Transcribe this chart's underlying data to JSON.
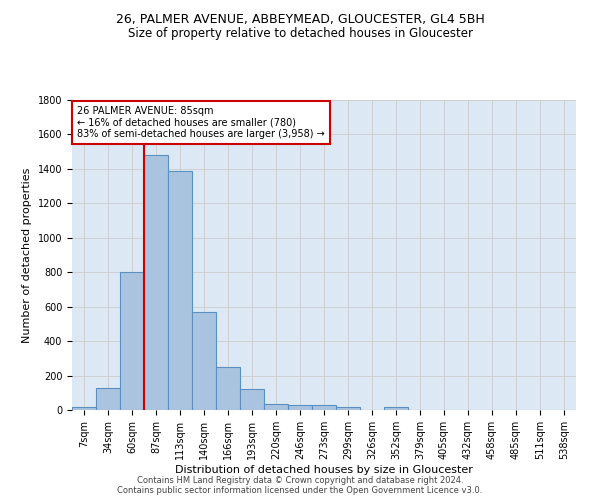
{
  "title": "26, PALMER AVENUE, ABBEYMEAD, GLOUCESTER, GL4 5BH",
  "subtitle": "Size of property relative to detached houses in Gloucester",
  "xlabel": "Distribution of detached houses by size in Gloucester",
  "ylabel": "Number of detached properties",
  "categories": [
    "7sqm",
    "34sqm",
    "60sqm",
    "87sqm",
    "113sqm",
    "140sqm",
    "166sqm",
    "193sqm",
    "220sqm",
    "246sqm",
    "273sqm",
    "299sqm",
    "326sqm",
    "352sqm",
    "379sqm",
    "405sqm",
    "432sqm",
    "458sqm",
    "485sqm",
    "511sqm",
    "538sqm"
  ],
  "values": [
    15,
    130,
    800,
    1480,
    1385,
    570,
    250,
    120,
    35,
    30,
    30,
    20,
    0,
    20,
    0,
    0,
    0,
    0,
    0,
    0,
    0
  ],
  "bar_color": "#aac4e0",
  "bar_edge_color": "#5a8fc0",
  "annotation_box_color": "#cc0000",
  "vline_color": "#cc0000",
  "marker_label_line1": "26 PALMER AVENUE: 85sqm",
  "marker_label_line2": "← 16% of detached houses are smaller (780)",
  "marker_label_line3": "83% of semi-detached houses are larger (3,958) →",
  "ylim": [
    0,
    1800
  ],
  "yticks": [
    0,
    200,
    400,
    600,
    800,
    1000,
    1200,
    1400,
    1600,
    1800
  ],
  "grid_color": "#cccccc",
  "plot_bg_color": "#dce9f5",
  "footer_line1": "Contains HM Land Registry data © Crown copyright and database right 2024.",
  "footer_line2": "Contains public sector information licensed under the Open Government Licence v3.0.",
  "title_fontsize": 9,
  "subtitle_fontsize": 8.5,
  "xlabel_fontsize": 8,
  "ylabel_fontsize": 8,
  "tick_fontsize": 7,
  "footer_fontsize": 6,
  "annot_fontsize": 7
}
